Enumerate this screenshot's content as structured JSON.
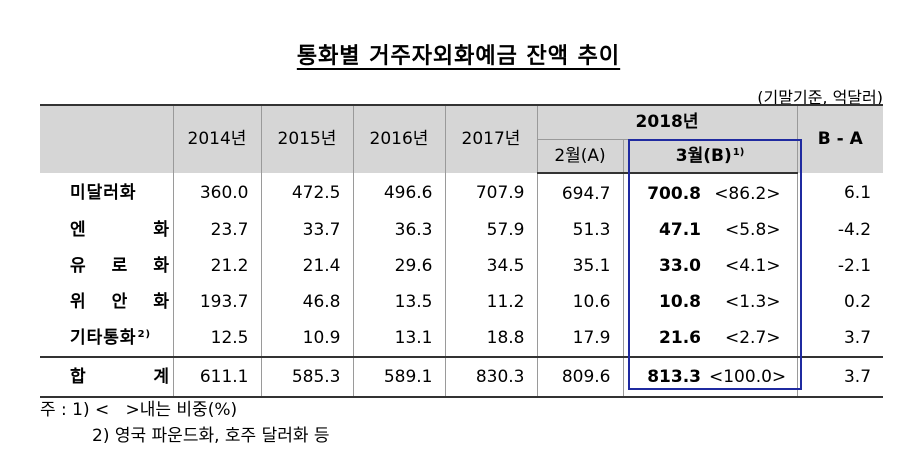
{
  "title": "통화별 거주자외화예금 잔액 추이",
  "unit": "(기말기준, 억달러)",
  "header": {
    "years": [
      "2014년",
      "2015년",
      "2016년",
      "2017년"
    ],
    "year2018": "2018년",
    "feb": "2월(A)",
    "mar": "3월(B)",
    "mar_sup": "1)",
    "ba": "B - A"
  },
  "rows": [
    {
      "name": "미달러화",
      "sup": "",
      "chars": [
        "미달러화"
      ],
      "y2014": "360.0",
      "y2015": "472.5",
      "y2016": "496.6",
      "y2017": "707.9",
      "feb": "694.7",
      "mar": "700.8",
      "share": "<86.2>",
      "diff": "6.1"
    },
    {
      "name": "엔 화",
      "sup": "",
      "chars": [
        "엔",
        "화"
      ],
      "y2014": "23.7",
      "y2015": "33.7",
      "y2016": "36.3",
      "y2017": "57.9",
      "feb": "51.3",
      "mar": "47.1",
      "share": "<5.8>",
      "diff": "-4.2"
    },
    {
      "name": "유 로 화",
      "sup": "",
      "chars": [
        "유",
        "로",
        "화"
      ],
      "y2014": "21.2",
      "y2015": "21.4",
      "y2016": "29.6",
      "y2017": "34.5",
      "feb": "35.1",
      "mar": "33.0",
      "share": "<4.1>",
      "diff": "-2.1"
    },
    {
      "name": "위 안 화",
      "sup": "",
      "chars": [
        "위",
        "안",
        "화"
      ],
      "y2014": "193.7",
      "y2015": "46.8",
      "y2016": "13.5",
      "y2017": "11.2",
      "feb": "10.6",
      "mar": "10.8",
      "share": "<1.3>",
      "diff": "0.2"
    },
    {
      "name": "기타통화",
      "sup": "2)",
      "chars": [
        "기타통화"
      ],
      "y2014": "12.5",
      "y2015": "10.9",
      "y2016": "13.1",
      "y2017": "18.8",
      "feb": "17.9",
      "mar": "21.6",
      "share": "<2.7>",
      "diff": "3.7"
    }
  ],
  "total": {
    "name": "합 계",
    "chars": [
      "합",
      "계"
    ],
    "y2014": "611.1",
    "y2015": "585.3",
    "y2016": "589.1",
    "y2017": "830.3",
    "feb": "809.6",
    "mar": "813.3",
    "share": "<100.0>",
    "diff": "3.7"
  },
  "notes": {
    "line1": "주 : 1) <   >내는 비중(%)",
    "line2": "2) 영국 파운드화, 호주 달러화 등"
  }
}
